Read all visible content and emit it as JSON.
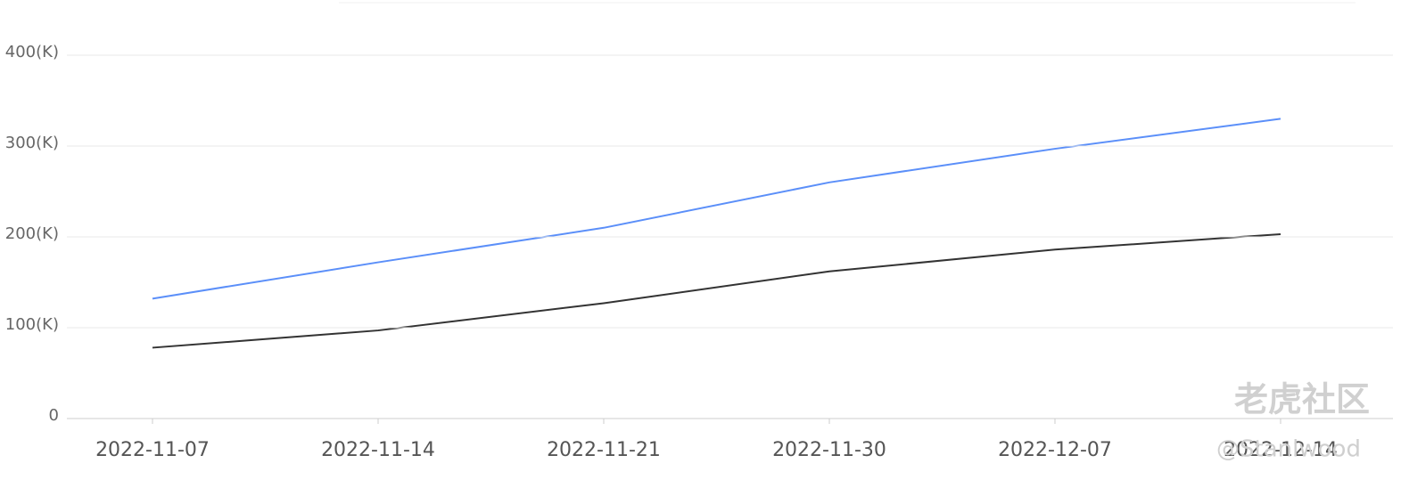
{
  "chart_data": {
    "type": "line",
    "categories": [
      "2022-11-07",
      "2022-11-14",
      "2022-11-21",
      "2022-11-30",
      "2022-12-07",
      "2022-12-14"
    ],
    "series": [
      {
        "color": "#5b8ff9",
        "values": [
          132,
          172,
          210,
          260,
          297,
          330
        ]
      },
      {
        "color": "#333333",
        "values": [
          78,
          97,
          127,
          162,
          186,
          203
        ]
      }
    ],
    "ylim": [
      0,
      400
    ],
    "yticks": [
      0,
      {
        "value": 100,
        "label": "100(K)"
      },
      {
        "value": 200,
        "label": "200(K)"
      },
      {
        "value": 300,
        "label": "300(K)"
      },
      {
        "value": 400,
        "label": "400(K)"
      }
    ],
    "grid": true,
    "watermark": [
      "老虎社区",
      "@Stanlwood"
    ]
  }
}
